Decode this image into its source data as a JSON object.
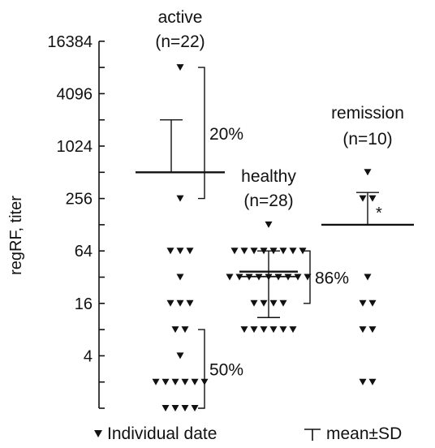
{
  "chart_data": {
    "type": "scatter",
    "y_scale": "log2",
    "ylabel": "regRF, titer",
    "ylim": [
      1,
      16384
    ],
    "y_ticks": [
      4,
      16,
      64,
      256,
      1024,
      4096,
      16384
    ],
    "y_tick_labels": [
      "4",
      "16",
      "64",
      "256",
      "1024",
      "4096",
      "16384"
    ],
    "marker_color": "#111111",
    "groups": [
      {
        "key": "active",
        "label_line1": "active",
        "label_line2": "(n=22)",
        "values": [
          8192,
          256,
          64,
          64,
          64,
          32,
          16,
          16,
          16,
          8,
          8,
          4,
          2,
          2,
          2,
          2,
          2,
          2,
          1,
          1,
          1,
          1
        ],
        "mean": 512,
        "sd_upper": 2048,
        "sd_whisker_direction": "up",
        "brackets": [
          {
            "label": "20%",
            "y_top": 8192,
            "y_bottom": 256
          },
          {
            "label": "50%",
            "y_top": 8,
            "y_bottom": 1
          }
        ]
      },
      {
        "key": "healthy",
        "label_line1": "healthy",
        "label_line2": "(n=28)",
        "values": [
          128,
          64,
          64,
          64,
          64,
          64,
          64,
          64,
          64,
          32,
          32,
          32,
          32,
          32,
          32,
          32,
          32,
          32,
          16,
          16,
          16,
          16,
          8,
          8,
          8,
          8,
          8,
          8
        ],
        "mean": 37,
        "sd_upper": 64,
        "sd_lower": 11,
        "sd_whisker_direction": "both",
        "brackets": [
          {
            "label": "86%",
            "y_top": 64,
            "y_bottom": 16
          }
        ]
      },
      {
        "key": "remission",
        "label_line1": "remission",
        "label_line2": "(n=10)",
        "values": [
          512,
          256,
          256,
          32,
          16,
          16,
          8,
          8,
          2,
          2
        ],
        "mean": 128,
        "sd_upper": 300,
        "sd_whisker_direction": "up",
        "annotation": "*",
        "brackets": []
      }
    ],
    "legend": {
      "marker_label": "Individual date",
      "meansd_label": "mean±SD",
      "placement": "bottom"
    }
  }
}
